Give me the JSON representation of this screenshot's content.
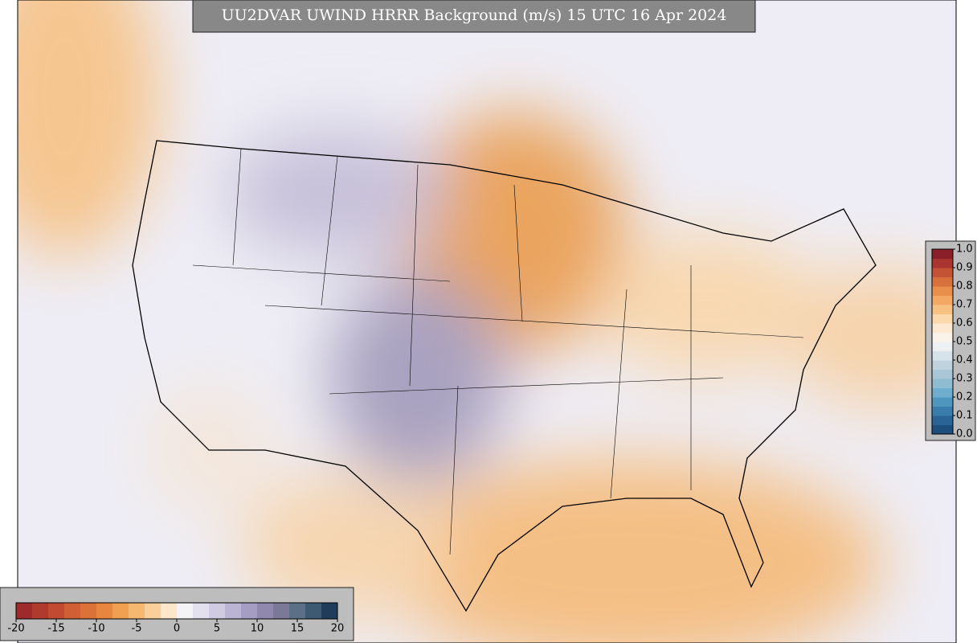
{
  "chart_data": {
    "type": "map",
    "title": "UU2DVAR UWIND HRRR Background (m/s) 15 UTC 16 Apr 2024",
    "colorbar": {
      "clim": [
        -20,
        20
      ],
      "ticks": [
        -20,
        -15,
        -10,
        -5,
        0,
        5,
        10,
        15,
        20
      ],
      "colors": [
        "#9e2a2b",
        "#b03a2e",
        "#c24a31",
        "#d05f36",
        "#dc723a",
        "#e6863f",
        "#f0a050",
        "#f6b870",
        "#fad09a",
        "#fde7ca",
        "#f4f3f6",
        "#e4e1ee",
        "#d0cbe2",
        "#bbb4d3",
        "#a69ec2",
        "#9189ad",
        "#7c7898",
        "#5b6f86",
        "#3e5a73",
        "#213c5a"
      ]
    },
    "colorbar2": {
      "clim": [
        0,
        1
      ],
      "ticks": [
        {
          "value": 0,
          "label": "0.0"
        },
        0.1,
        0.2,
        0.3,
        0.4,
        0.5,
        0.6,
        0.7,
        0.8,
        0.9,
        {
          "value": 1,
          "label": "1.0"
        }
      ],
      "colors": [
        "#1d4e7c",
        "#2a6496",
        "#3a7cab",
        "#4f96bf",
        "#6fadcf",
        "#8fbcd0",
        "#a8c6d6",
        "#bfd3df",
        "#d6e3ea",
        "#edf1f3",
        "#faf3ea",
        "#fde9d2",
        "#fcd8ad",
        "#f8c184",
        "#f3a964",
        "#e88f4c",
        "#d8703d",
        "#c45235",
        "#a8352f",
        "#8a1f2a"
      ]
    }
  }
}
